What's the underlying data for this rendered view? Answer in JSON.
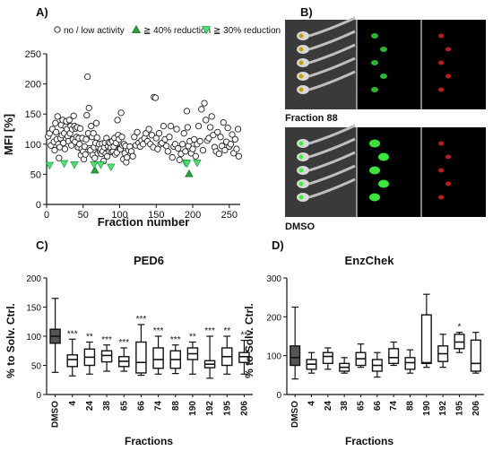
{
  "panels": {
    "a": {
      "label": "A)"
    },
    "b": {
      "label": "B)",
      "top_caption": "Fraction 88",
      "bottom_caption": "DMSO"
    },
    "c": {
      "label": "C)"
    },
    "d": {
      "label": "D)"
    }
  },
  "colors": {
    "triangle_40": "#2e9e3e",
    "triangle_30": "#4fe070",
    "dmso_box": "#555555",
    "zebrafish_green": "#3ef03e",
    "zebrafish_red": "#e02020"
  },
  "chart_data": [
    {
      "id": "A",
      "type": "scatter",
      "xlabel": "Fraction number",
      "ylabel": "MFI [%]",
      "xlim": [
        0,
        265
      ],
      "ylim": [
        0,
        250
      ],
      "xticks": [
        "0",
        "50",
        "100",
        "150",
        "200",
        "250"
      ],
      "yticks": [
        "0",
        "50",
        "100",
        "150",
        "200",
        "250"
      ],
      "legend": [
        "no / low activity",
        "≧ 40% reduction",
        "≧ 30% reduction"
      ],
      "legend_position": "top",
      "series": [
        {
          "name": "no / low activity",
          "marker": "open-circle",
          "points": [
            [
              2,
              113
            ],
            [
              4,
              118
            ],
            [
              6,
              98
            ],
            [
              8,
              125
            ],
            [
              10,
              104
            ],
            [
              11,
              90
            ],
            [
              12,
              135
            ],
            [
              13,
              120
            ],
            [
              14,
              108
            ],
            [
              15,
              146
            ],
            [
              16,
              100
            ],
            [
              17,
              77
            ],
            [
              18,
              95
            ],
            [
              19,
              110
            ],
            [
              20,
              132
            ],
            [
              21,
              115
            ],
            [
              22,
              140
            ],
            [
              23,
              102
            ],
            [
              24,
              118
            ],
            [
              25,
              92
            ],
            [
              26,
              129
            ],
            [
              27,
              138
            ],
            [
              28,
              125
            ],
            [
              29,
              113
            ],
            [
              30,
              105
            ],
            [
              31,
              140
            ],
            [
              32,
              118
            ],
            [
              33,
              130
            ],
            [
              34,
              98
            ],
            [
              35,
              125
            ],
            [
              36,
              108
            ],
            [
              37,
              147
            ],
            [
              38,
              130
            ],
            [
              39,
              104
            ],
            [
              40,
              126
            ],
            [
              41,
              112
            ],
            [
              42,
              128
            ],
            [
              43,
              95
            ],
            [
              44,
              110
            ],
            [
              45,
              100
            ],
            [
              46,
              126
            ],
            [
              47,
              82
            ],
            [
              48,
              92
            ],
            [
              49,
              110
            ],
            [
              50,
              88
            ],
            [
              51,
              75
            ],
            [
              52,
              96
            ],
            [
              53,
              83
            ],
            [
              54,
              108
            ],
            [
              55,
              148
            ],
            [
              56,
              212
            ],
            [
              57,
              118
            ],
            [
              58,
              160
            ],
            [
              59,
              93
            ],
            [
              60,
              90
            ],
            [
              61,
              130
            ],
            [
              62,
              112
            ],
            [
              63,
              82
            ],
            [
              64,
              118
            ],
            [
              65,
              95
            ],
            [
              66,
              77
            ],
            [
              67,
              102
            ],
            [
              68,
              135
            ],
            [
              69,
              111
            ],
            [
              70,
              85
            ],
            [
              71,
              95
            ],
            [
              72,
              100
            ],
            [
              73,
              88
            ],
            [
              74,
              92
            ],
            [
              75,
              84
            ],
            [
              76,
              101
            ],
            [
              77,
              88
            ],
            [
              78,
              72
            ],
            [
              79,
              95
            ],
            [
              80,
              102
            ],
            [
              81,
              84
            ],
            [
              82,
              110
            ],
            [
              83,
              80
            ],
            [
              84,
              97
            ],
            [
              85,
              103
            ],
            [
              86,
              88
            ],
            [
              87,
              102
            ],
            [
              88,
              94
            ],
            [
              89,
              87
            ],
            [
              90,
              105
            ],
            [
              91,
              88
            ],
            [
              92,
              96
            ],
            [
              93,
              110
            ],
            [
              94,
              83
            ],
            [
              95,
              102
            ],
            [
              96,
              86
            ],
            [
              97,
              140
            ],
            [
              98,
              115
            ],
            [
              99,
              108
            ],
            [
              100,
              93
            ],
            [
              101,
              92
            ],
            [
              102,
              152
            ],
            [
              103,
              112
            ],
            [
              104,
              98
            ],
            [
              105,
              75
            ],
            [
              106,
              100
            ],
            [
              107,
              85
            ],
            [
              108,
              97
            ],
            [
              109,
              70
            ],
            [
              110,
              78
            ],
            [
              112,
              90
            ],
            [
              114,
              96
            ],
            [
              116,
              88
            ],
            [
              118,
              80
            ],
            [
              120,
              112
            ],
            [
              122,
              98
            ],
            [
              124,
              120
            ],
            [
              126,
              102
            ],
            [
              128,
              96
            ],
            [
              130,
              106
            ],
            [
              132,
              100
            ],
            [
              134,
              110
            ],
            [
              136,
              118
            ],
            [
              138,
              105
            ],
            [
              140,
              125
            ],
            [
              142,
              100
            ],
            [
              144,
              115
            ],
            [
              146,
              95
            ],
            [
              147,
              178
            ],
            [
              149,
              177
            ],
            [
              150,
              110
            ],
            [
              152,
              92
            ],
            [
              154,
              118
            ],
            [
              156,
              100
            ],
            [
              158,
              102
            ],
            [
              160,
              130
            ],
            [
              162,
              108
            ],
            [
              164,
              97
            ],
            [
              166,
              88
            ],
            [
              168,
              112
            ],
            [
              170,
              130
            ],
            [
              172,
              78
            ],
            [
              174,
              96
            ],
            [
              176,
              100
            ],
            [
              178,
              125
            ],
            [
              180,
              93
            ],
            [
              182,
              74
            ],
            [
              184,
              84
            ],
            [
              186,
              100
            ],
            [
              188,
              118
            ],
            [
              190,
              88
            ],
            [
              192,
              155
            ],
            [
              193,
              128
            ],
            [
              194,
              97
            ],
            [
              196,
              105
            ],
            [
              198,
              85
            ],
            [
              200,
              92
            ],
            [
              202,
              108
            ],
            [
              204,
              80
            ],
            [
              206,
              100
            ],
            [
              208,
              130
            ],
            [
              210,
              105
            ],
            [
              212,
              158
            ],
            [
              214,
              90
            ],
            [
              216,
              168
            ],
            [
              218,
              140
            ],
            [
              220,
              106
            ],
            [
              222,
              110
            ],
            [
              224,
              128
            ],
            [
              226,
              146
            ],
            [
              228,
              115
            ],
            [
              230,
              95
            ],
            [
              232,
              88
            ],
            [
              234,
              120
            ],
            [
              236,
              84
            ],
            [
              238,
              112
            ],
            [
              240,
              97
            ],
            [
              242,
              136
            ],
            [
              244,
              90
            ],
            [
              246,
              104
            ],
            [
              248,
              127
            ],
            [
              250,
              96
            ],
            [
              252,
              100
            ],
            [
              254,
              116
            ],
            [
              256,
              85
            ],
            [
              258,
              108
            ],
            [
              260,
              92
            ],
            [
              262,
              125
            ],
            [
              263,
              80
            ]
          ]
        },
        {
          "name": "≧ 40% reduction",
          "marker": "filled-triangle-up",
          "points": [
            [
              66,
              57
            ],
            [
              195,
              51
            ]
          ]
        },
        {
          "name": "≧ 30% reduction",
          "marker": "filled-triangle-down",
          "points": [
            [
              4,
              65
            ],
            [
              24,
              68
            ],
            [
              38,
              66
            ],
            [
              65,
              66
            ],
            [
              74,
              66
            ],
            [
              88,
              62
            ],
            [
              190,
              69
            ],
            [
              192,
              68
            ],
            [
              206,
              69
            ]
          ]
        }
      ]
    },
    {
      "id": "C",
      "type": "box",
      "title": "PED6",
      "xlabel": "Fractions",
      "ylabel": "% to Solv. Ctrl.",
      "ylim": [
        0,
        200
      ],
      "yticks": [
        "0",
        "50",
        "100",
        "150",
        "200"
      ],
      "categories": [
        "DMSO",
        "4",
        "24",
        "38",
        "65",
        "66",
        "74",
        "88",
        "190",
        "192",
        "195",
        "206"
      ],
      "boxes": [
        {
          "min": 38,
          "q1": 88,
          "median": 100,
          "q3": 112,
          "max": 165
        },
        {
          "min": 32,
          "q1": 48,
          "median": 60,
          "q3": 68,
          "max": 95
        },
        {
          "min": 35,
          "q1": 50,
          "median": 64,
          "q3": 78,
          "max": 90
        },
        {
          "min": 40,
          "q1": 56,
          "median": 67,
          "q3": 75,
          "max": 85
        },
        {
          "min": 40,
          "q1": 48,
          "median": 57,
          "q3": 65,
          "max": 80
        },
        {
          "min": 33,
          "q1": 37,
          "median": 55,
          "q3": 90,
          "max": 120
        },
        {
          "min": 35,
          "q1": 45,
          "median": 60,
          "q3": 80,
          "max": 100
        },
        {
          "min": 36,
          "q1": 45,
          "median": 60,
          "q3": 75,
          "max": 85
        },
        {
          "min": 35,
          "q1": 60,
          "median": 70,
          "q3": 80,
          "max": 90
        },
        {
          "min": 28,
          "q1": 46,
          "median": 52,
          "q3": 58,
          "max": 100
        },
        {
          "min": 35,
          "q1": 50,
          "median": 65,
          "q3": 80,
          "max": 100
        },
        {
          "min": 35,
          "q1": 55,
          "median": 65,
          "q3": 72,
          "max": 93
        }
      ],
      "annotations": [
        "",
        "***",
        "**",
        "***",
        "***",
        "***",
        "***",
        "***",
        "**",
        "***",
        "**",
        "**"
      ]
    },
    {
      "id": "D",
      "type": "box",
      "title": "EnzChek",
      "xlabel": "Fractions",
      "ylabel": "% to Solv. Ctrl.",
      "ylim": [
        0,
        300
      ],
      "yticks": [
        "0",
        "100",
        "200",
        "300"
      ],
      "categories": [
        "DMSO",
        "4",
        "24",
        "38",
        "65",
        "66",
        "74",
        "88",
        "190",
        "192",
        "195",
        "206"
      ],
      "boxes": [
        {
          "min": 40,
          "q1": 75,
          "median": 95,
          "q3": 125,
          "max": 225
        },
        {
          "min": 55,
          "q1": 65,
          "median": 78,
          "q3": 90,
          "max": 108
        },
        {
          "min": 65,
          "q1": 80,
          "median": 98,
          "q3": 108,
          "max": 120
        },
        {
          "min": 55,
          "q1": 60,
          "median": 70,
          "q3": 80,
          "max": 95
        },
        {
          "min": 70,
          "q1": 75,
          "median": 92,
          "q3": 108,
          "max": 130
        },
        {
          "min": 45,
          "q1": 60,
          "median": 75,
          "q3": 90,
          "max": 108
        },
        {
          "min": 75,
          "q1": 80,
          "median": 95,
          "q3": 118,
          "max": 135
        },
        {
          "min": 55,
          "q1": 65,
          "median": 82,
          "q3": 95,
          "max": 115
        },
        {
          "min": 70,
          "q1": 80,
          "median": 82,
          "q3": 205,
          "max": 258
        },
        {
          "min": 70,
          "q1": 85,
          "median": 105,
          "q3": 125,
          "max": 155
        },
        {
          "min": 108,
          "q1": 118,
          "median": 135,
          "q3": 155,
          "max": 160
        },
        {
          "min": 55,
          "q1": 60,
          "median": 80,
          "q3": 140,
          "max": 160
        }
      ],
      "annotations": [
        "",
        "",
        "",
        "",
        "",
        "",
        "",
        "",
        "",
        "",
        "*",
        ""
      ]
    }
  ]
}
